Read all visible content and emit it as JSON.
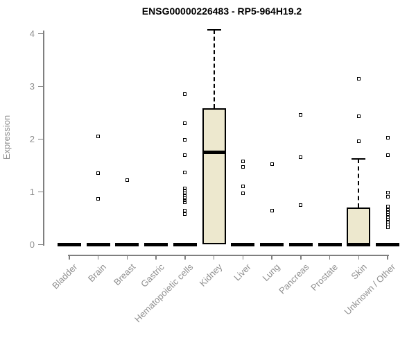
{
  "chart_data": {
    "type": "boxplot",
    "title": "ENSG00000226483 - RP5-964H19.2",
    "ylabel": "Expression",
    "xlabel": "",
    "ylim": [
      0,
      4.1
    ],
    "yticks": [
      0,
      1,
      2,
      3,
      4
    ],
    "grid": false,
    "legend": "none",
    "categories": [
      "Bladder",
      "Brain",
      "Breast",
      "Gastric",
      "Hematopoietic cells",
      "Kidney",
      "Liver",
      "Lung",
      "Pancreas",
      "Prostate",
      "Skin",
      "Unknown / Other"
    ],
    "boxes": [
      {
        "category": "Bladder",
        "q1": 0,
        "median": 0,
        "q3": 0,
        "whisker_low": 0,
        "whisker_high": 0,
        "outliers": []
      },
      {
        "category": "Brain",
        "q1": 0,
        "median": 0,
        "q3": 0,
        "whisker_low": 0,
        "whisker_high": 0,
        "outliers": [
          2.05,
          1.35,
          0.87
        ]
      },
      {
        "category": "Breast",
        "q1": 0,
        "median": 0,
        "q3": 0,
        "whisker_low": 0,
        "whisker_high": 0,
        "outliers": [
          1.22
        ]
      },
      {
        "category": "Gastric",
        "q1": 0,
        "median": 0,
        "q3": 0,
        "whisker_low": 0,
        "whisker_high": 0,
        "outliers": []
      },
      {
        "category": "Hematopoietic cells",
        "q1": 0,
        "median": 0,
        "q3": 0,
        "whisker_low": 0,
        "whisker_high": 0,
        "outliers": [
          2.85,
          2.3,
          1.99,
          1.7,
          1.37,
          1.07,
          1.02,
          0.97,
          0.93,
          0.88,
          0.84,
          0.8,
          0.64,
          0.58
        ]
      },
      {
        "category": "Kidney",
        "q1": 0,
        "median": 1.75,
        "q3": 2.58,
        "whisker_low": 0,
        "whisker_high": 4.07,
        "outliers": []
      },
      {
        "category": "Liver",
        "q1": 0,
        "median": 0,
        "q3": 0,
        "whisker_low": 0,
        "whisker_high": 0,
        "outliers": [
          1.58,
          1.47,
          1.1,
          0.97
        ]
      },
      {
        "category": "Lung",
        "q1": 0,
        "median": 0,
        "q3": 0,
        "whisker_low": 0,
        "whisker_high": 0,
        "outliers": [
          1.52,
          0.64
        ]
      },
      {
        "category": "Pancreas",
        "q1": 0,
        "median": 0,
        "q3": 0,
        "whisker_low": 0,
        "whisker_high": 0,
        "outliers": [
          2.46,
          1.66,
          0.75
        ]
      },
      {
        "category": "Prostate",
        "q1": 0,
        "median": 0,
        "q3": 0,
        "whisker_low": 0,
        "whisker_high": 0,
        "outliers": []
      },
      {
        "category": "Skin",
        "q1": 0,
        "median": 0,
        "q3": 0.7,
        "whisker_low": 0,
        "whisker_high": 1.63,
        "outliers": [
          3.14,
          2.43,
          1.96
        ]
      },
      {
        "category": "Unknown / Other",
        "q1": 0,
        "median": 0,
        "q3": 0,
        "whisker_low": 0,
        "whisker_high": 0,
        "outliers": [
          2.03,
          1.7,
          0.99,
          0.91,
          0.72,
          0.66,
          0.62,
          0.57,
          0.52,
          0.47,
          0.43,
          0.38,
          0.33
        ]
      }
    ],
    "colors": {
      "box_fill": "#EDE8CE",
      "box_border": "#000000",
      "median": "#000000",
      "outlier": "#000000",
      "axis": "#7f7f7f",
      "tick_label": "#8f8f8f",
      "title": "#000000",
      "background": "#ffffff"
    }
  }
}
